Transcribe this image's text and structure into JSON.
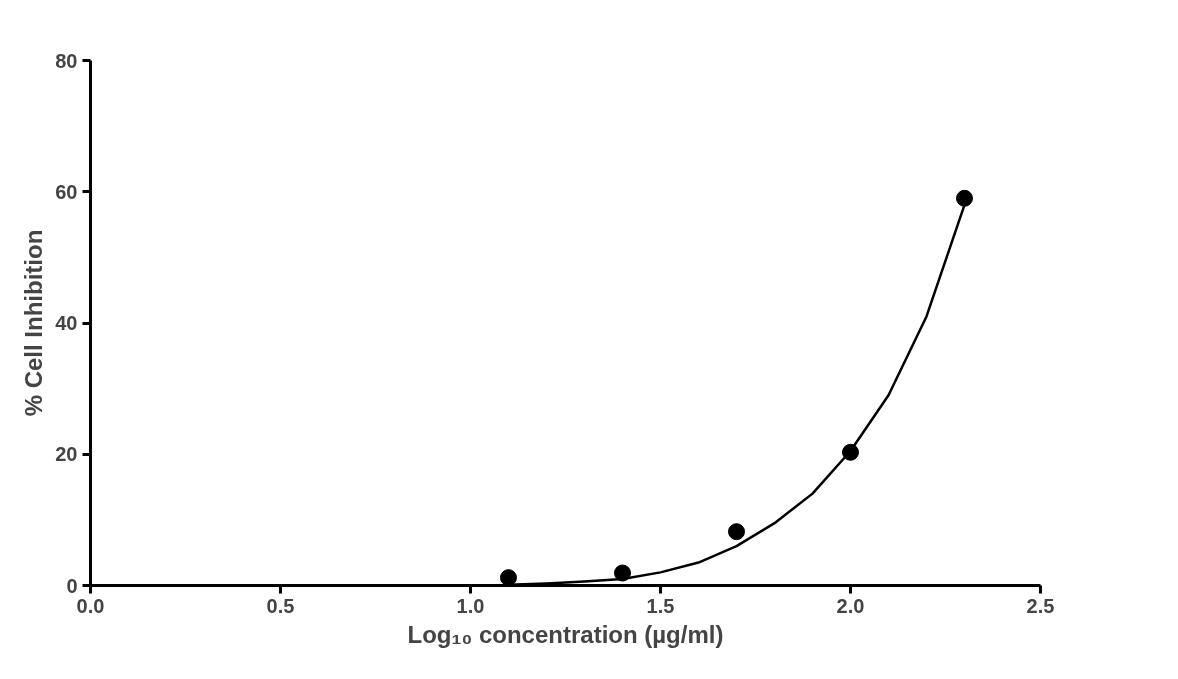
{
  "chart_data": {
    "type": "scatter",
    "xlabel": "Log₁₀ concentration (µg/ml)",
    "ylabel": "% Cell Inhibition",
    "xlim": [
      0,
      2.5
    ],
    "ylim": [
      0,
      80
    ],
    "xticks": [
      {
        "value": 0,
        "label": "0.0"
      },
      0.5,
      {
        "value": 1,
        "label": "1.0"
      },
      1.5,
      {
        "value": 2,
        "label": "2.0"
      },
      2.5
    ],
    "yticks": [
      0,
      20,
      40,
      60,
      80
    ],
    "grid": false,
    "marker": "circle",
    "series": [
      {
        "color": "#000000",
        "x": [
          1.1,
          1.4,
          1.7,
          2.0,
          2.3
        ],
        "values": [
          1.2,
          1.9,
          8.2,
          20.3,
          59
        ]
      },
      {
        "type": "line",
        "marker": "none",
        "color": "#000000",
        "x": [
          1.1,
          1.2,
          1.3,
          1.4,
          1.5,
          1.6,
          1.7,
          1.8,
          1.9,
          2.0,
          2.1,
          2.2,
          2.3
        ],
        "values": [
          0.1,
          0.3,
          0.6,
          1,
          2,
          3.5,
          6,
          9.5,
          14,
          20.5,
          29,
          41,
          58
        ]
      }
    ]
  }
}
